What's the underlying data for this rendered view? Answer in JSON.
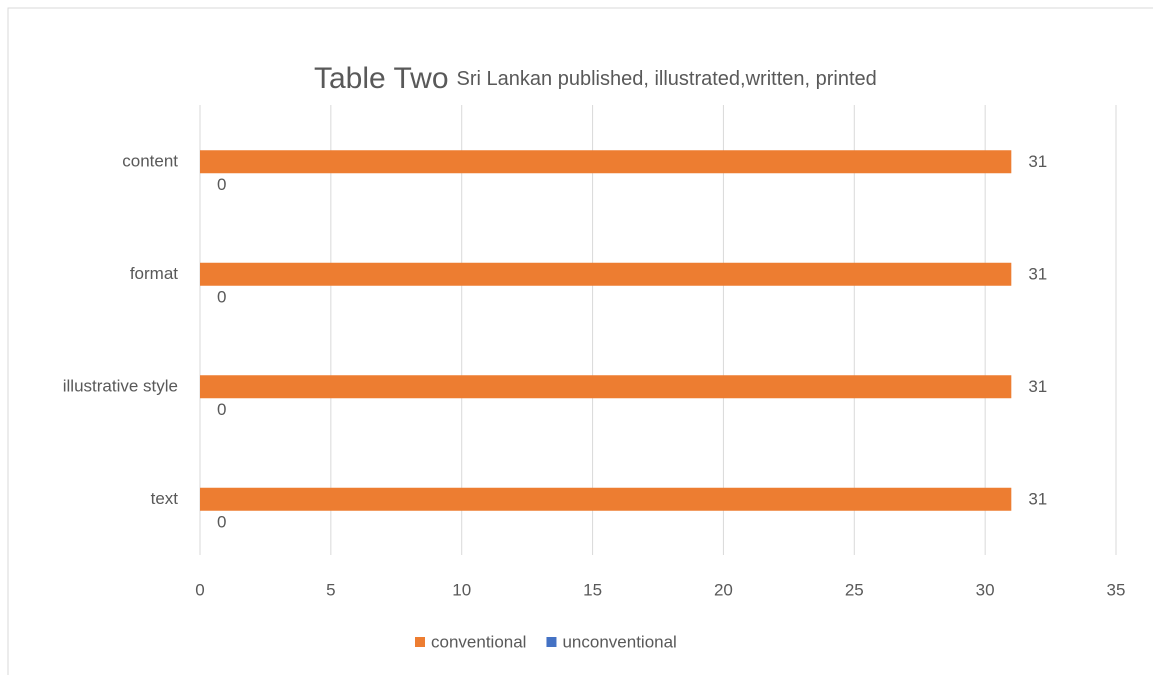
{
  "chart_data": {
    "type": "bar",
    "orientation": "horizontal",
    "title": "Table Two",
    "subtitle": "Sri Lankan published, illustrated,written, printed",
    "categories": [
      "content",
      "format",
      "illustrative style",
      "text"
    ],
    "series": [
      {
        "name": "conventional",
        "color": "#ed7d31",
        "values": [
          31,
          31,
          31,
          31
        ]
      },
      {
        "name": "unconventional",
        "color": "#4472c4",
        "values": [
          0,
          0,
          0,
          0
        ]
      }
    ],
    "xlim": [
      0,
      35
    ],
    "xticks": [
      0,
      5,
      10,
      15,
      20,
      25,
      30,
      35
    ],
    "grid": true,
    "legend": "bottom"
  }
}
